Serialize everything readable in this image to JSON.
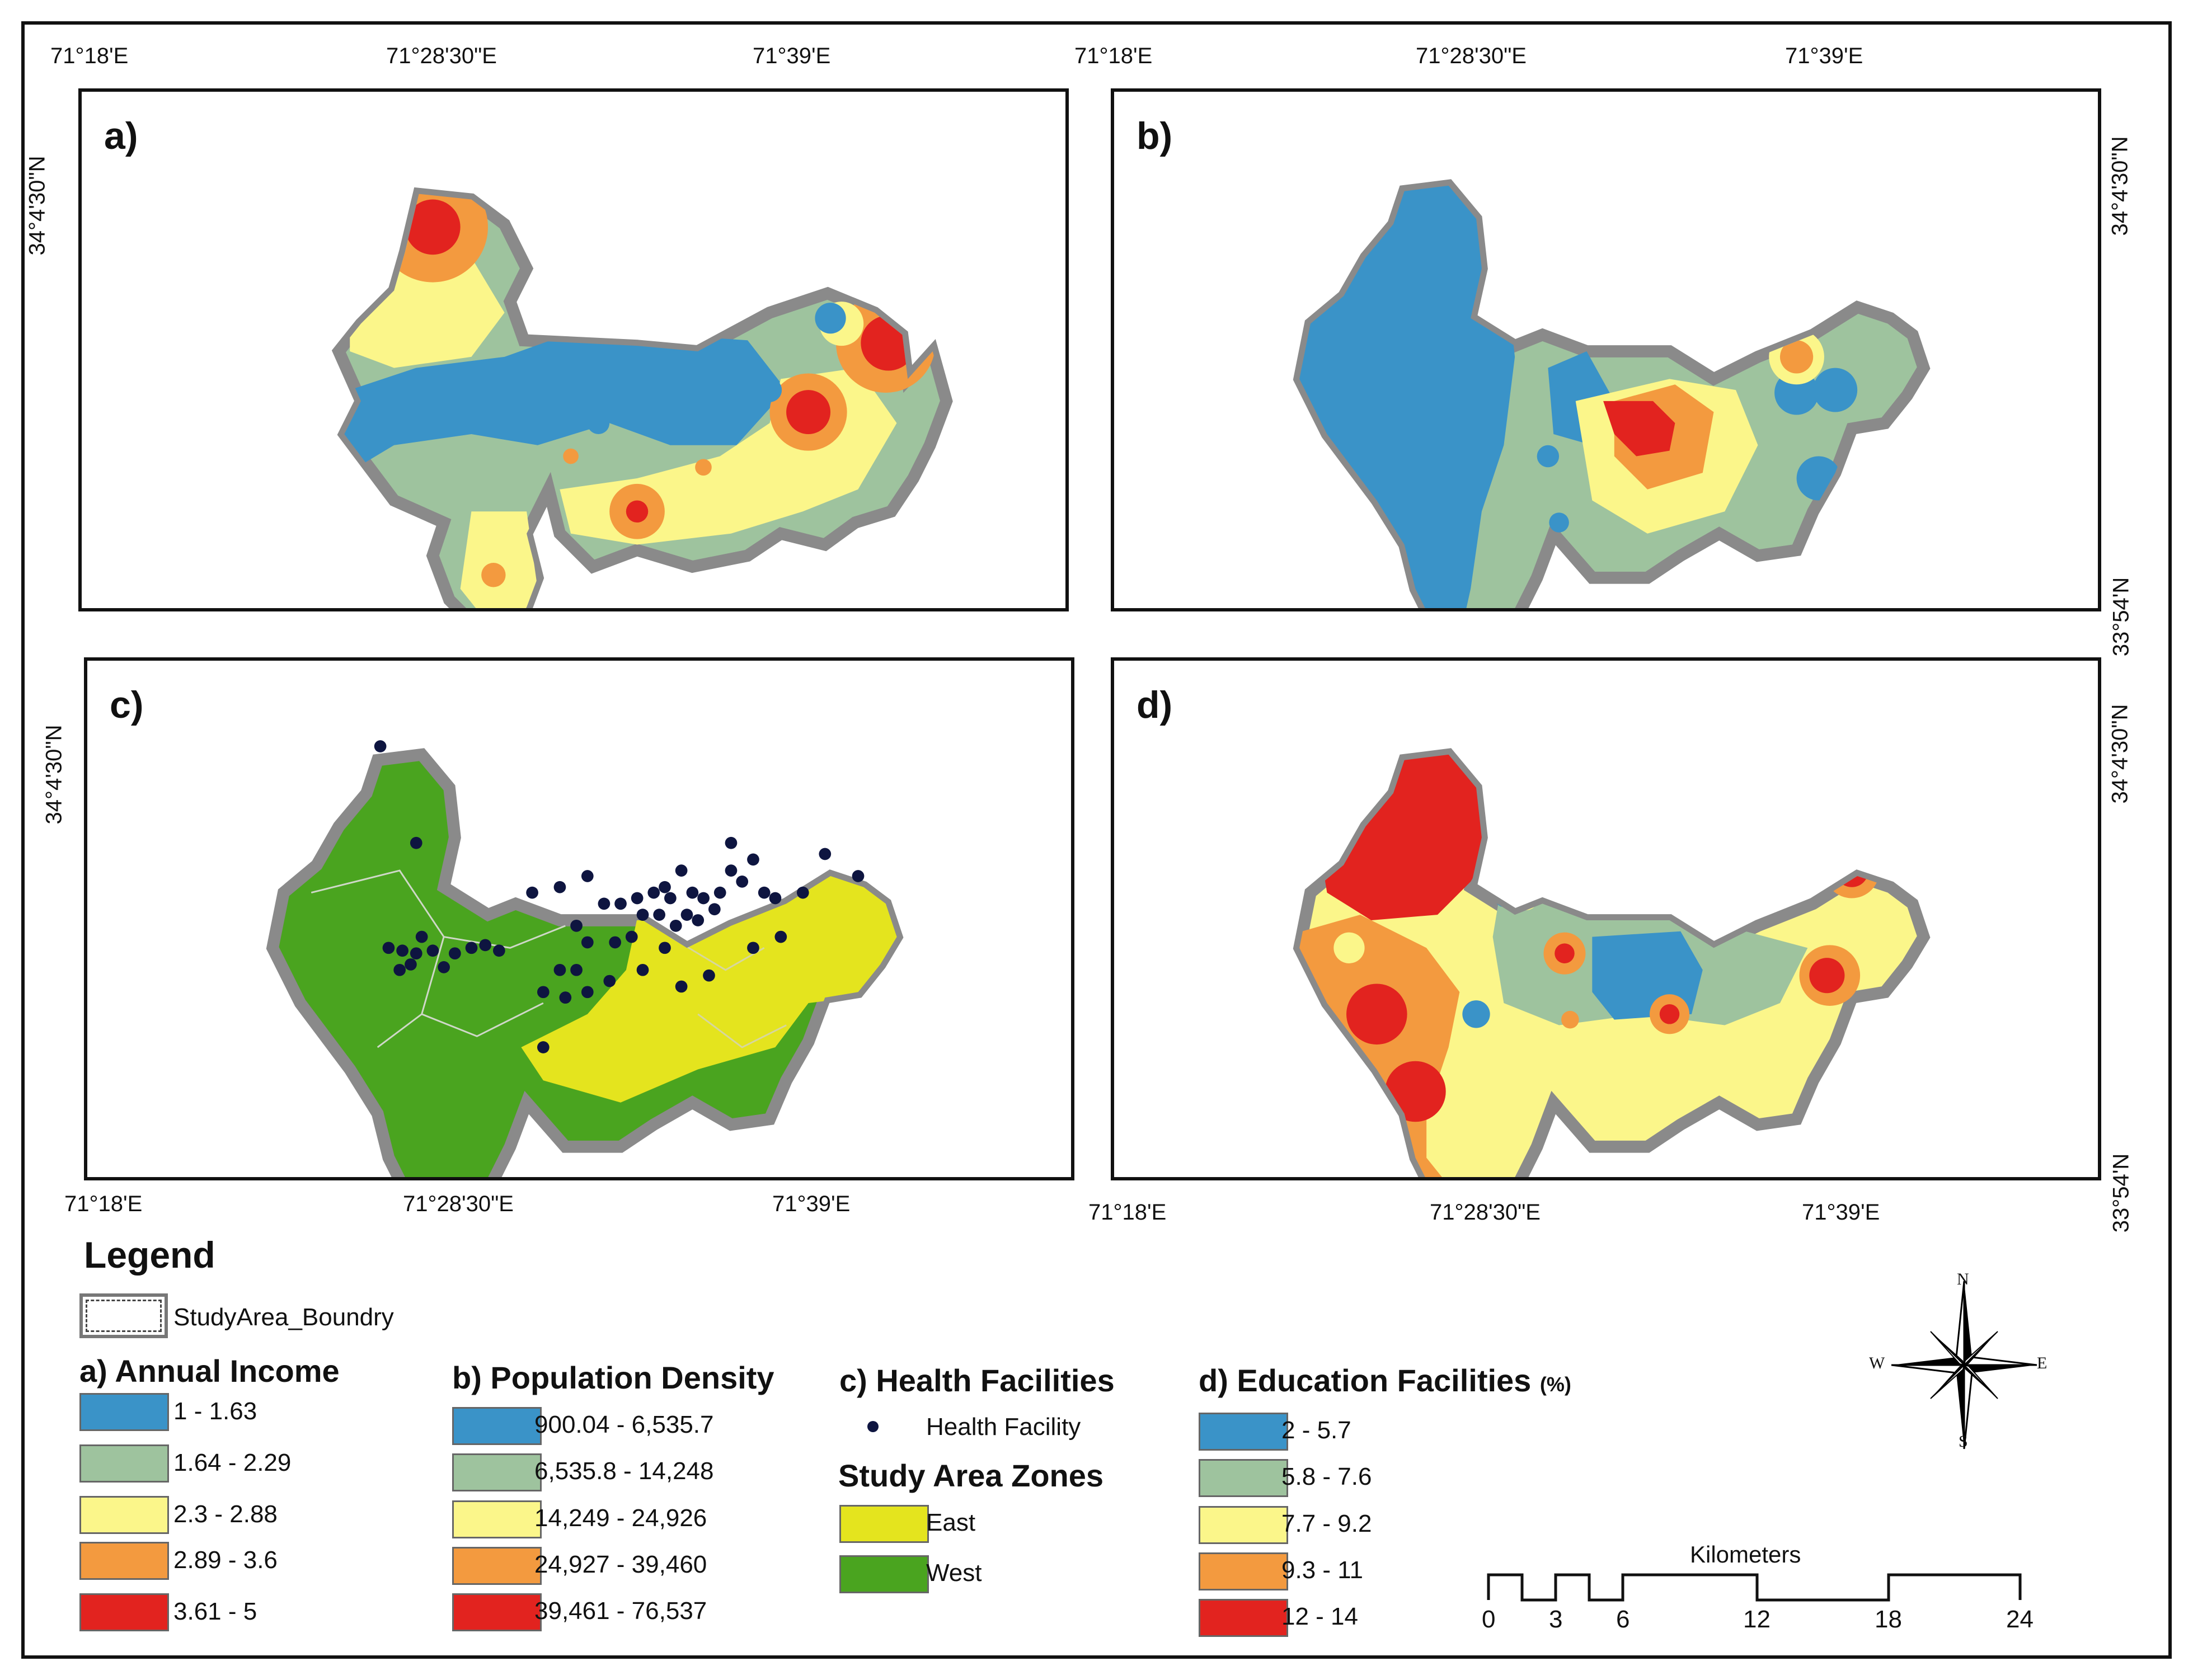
{
  "panels": {
    "a": {
      "label": "a)"
    },
    "b": {
      "label": "b)"
    },
    "c": {
      "label": "c)"
    },
    "d": {
      "label": "d)"
    }
  },
  "axes": {
    "lon_west": "71°18'E",
    "lon_mid": "71°28'30\"E",
    "lon_east": "71°39'E",
    "lat_north": "34°4'30\"N",
    "lat_south": "33°54'N"
  },
  "legend": {
    "title": "Legend",
    "boundary_label": "StudyArea_Boundry",
    "income": {
      "title": "a) Annual Income",
      "classes": [
        {
          "label": "1 - 1.63",
          "color": "#3a93c8"
        },
        {
          "label": "1.64 - 2.29",
          "color": "#9ec39e"
        },
        {
          "label": "2.3 - 2.88",
          "color": "#fbf68a"
        },
        {
          "label": "2.89 - 3.6",
          "color": "#f39a3f"
        },
        {
          "label": "3.61 - 5",
          "color": "#e2231f"
        }
      ]
    },
    "density": {
      "title": "b) Population Density",
      "classes": [
        {
          "label": "900.04 - 6,535.7",
          "color": "#3a93c8"
        },
        {
          "label": "6,535.8 - 14,248",
          "color": "#9ec39e"
        },
        {
          "label": "14,249 - 24,926",
          "color": "#fbf68a"
        },
        {
          "label": "24,927 - 39,460",
          "color": "#f39a3f"
        },
        {
          "label": "39,461 - 76,537",
          "color": "#e2231f"
        }
      ]
    },
    "health": {
      "title": "c) Health Facilities",
      "facility_label": "Health Facility",
      "zones_title": "Study Area Zones",
      "zones": [
        {
          "label": "East",
          "color": "#e4e41e"
        },
        {
          "label": "West",
          "color": "#4aa41f"
        }
      ]
    },
    "education": {
      "title": "d) Education Facilities",
      "unit": "(%)",
      "classes": [
        {
          "label": "2 - 5.7",
          "color": "#3a93c8"
        },
        {
          "label": "5.8 - 7.6",
          "color": "#9ec39e"
        },
        {
          "label": "7.7 - 9.2",
          "color": "#fbf68a"
        },
        {
          "label": "9.3 - 11",
          "color": "#f39a3f"
        },
        {
          "label": "12 - 14",
          "color": "#e2231f"
        }
      ]
    }
  },
  "compass": {
    "n": "N",
    "s": "S",
    "e": "E",
    "w": "W"
  },
  "scalebar": {
    "title": "Kilometers",
    "ticks": [
      "0",
      "3",
      "6",
      "12",
      "18",
      "24"
    ]
  }
}
